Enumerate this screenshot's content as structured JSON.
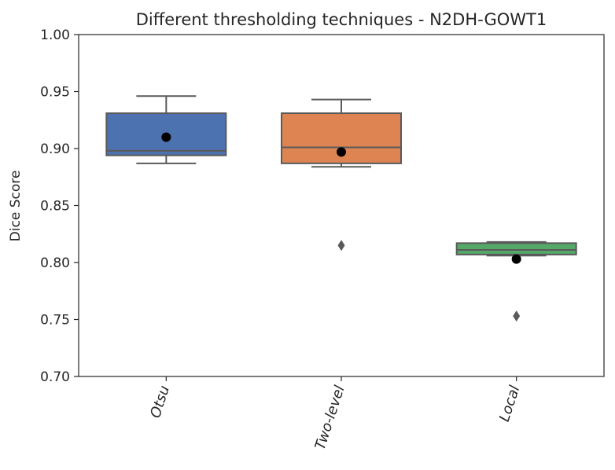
{
  "chart_data": {
    "type": "box",
    "title": "Different thresholding techniques - N2DH-GOWT1",
    "xlabel": "",
    "ylabel": "Dice Score",
    "ylim": [
      0.7,
      1.0
    ],
    "yticks": [
      0.7,
      0.75,
      0.8,
      0.85,
      0.9,
      0.95,
      1.0
    ],
    "ytick_labels": [
      "0.70",
      "0.75",
      "0.80",
      "0.85",
      "0.90",
      "0.95",
      "1.00"
    ],
    "categories": [
      "Otsu",
      "Two-level",
      "Local"
    ],
    "grid": false,
    "mean_marker_color": "#000000",
    "series": [
      {
        "color": "#4c72b0",
        "whisker_low": 0.887,
        "q1": 0.894,
        "median": 0.898,
        "q3": 0.931,
        "whisker_high": 0.946,
        "mean": 0.91,
        "outliers": []
      },
      {
        "color": "#dd8452",
        "whisker_low": 0.884,
        "q1": 0.887,
        "median": 0.901,
        "q3": 0.931,
        "whisker_high": 0.943,
        "mean": 0.897,
        "outliers": [
          0.815
        ]
      },
      {
        "color": "#55a868",
        "whisker_low": 0.806,
        "q1": 0.807,
        "median": 0.811,
        "q3": 0.817,
        "whisker_high": 0.818,
        "mean": 0.803,
        "outliers": [
          0.753
        ]
      }
    ]
  }
}
